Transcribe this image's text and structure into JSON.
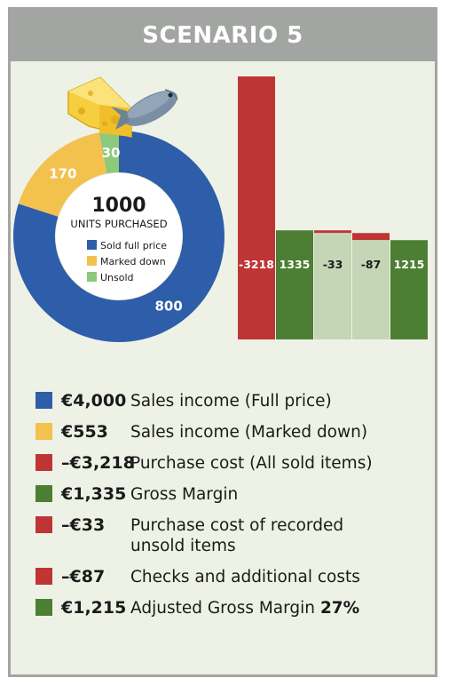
{
  "title": "SCENARIO 5",
  "donut": {
    "center_value": "1000",
    "center_label": "UNITS PURCHASED",
    "legend": [
      {
        "label": "Sold full price",
        "color": "#2e5eaa"
      },
      {
        "label": "Marked down",
        "color": "#f2c14e"
      },
      {
        "label": "Unsold",
        "color": "#8cc97a"
      }
    ]
  },
  "chart_data": [
    {
      "type": "pie",
      "categories": [
        "Sold full price",
        "Marked down",
        "Unsold"
      ],
      "values": [
        800,
        170,
        30
      ],
      "labels": [
        "800",
        "170",
        "30"
      ],
      "colors": [
        "#2e5eaa",
        "#f2c14e",
        "#8cc97a"
      ],
      "title": "1000 UNITS PURCHASED"
    },
    {
      "type": "bar",
      "subtype": "waterfall",
      "categories": [
        "Purchase cost (All sold items)",
        "Gross Margin",
        "Purchase cost of recorded unsold items",
        "Checks and additional costs",
        "Adjusted Gross Margin"
      ],
      "values": [
        -3218,
        1335,
        -33,
        -87,
        1215
      ],
      "labels": [
        "-3218",
        "1335",
        "-33",
        "-87",
        "1215"
      ]
    }
  ],
  "legend_rows": [
    {
      "amount": "€4,000",
      "text": "Sales income (Full price)",
      "color": "#2e5eaa"
    },
    {
      "amount": "€553",
      "text": "Sales income (Marked down)",
      "color": "#f2c14e"
    },
    {
      "amount": "–€3,218",
      "text": "Purchase cost (All sold items)",
      "color": "#bf3535"
    },
    {
      "amount": "€1,335",
      "text": "Gross Margin",
      "color": "#4c7f34"
    },
    {
      "amount": "–€33",
      "text": "Purchase cost of recorded unsold items",
      "color": "#bf3535"
    },
    {
      "amount": "–€87",
      "text": "Checks and additional costs",
      "color": "#bf3535"
    },
    {
      "amount": "€1,215",
      "text": "Adjusted Gross Margin",
      "text_bold": "27%",
      "color": "#4c7f34"
    }
  ],
  "colors": {
    "red": "#bf3535",
    "green": "#4c7f34",
    "pale_green": "#c5d6b6",
    "banner": "#a2a5a2",
    "background": "#eef2e6"
  },
  "illustration": {
    "icons": [
      "cheese-icon",
      "fish-icon"
    ]
  }
}
